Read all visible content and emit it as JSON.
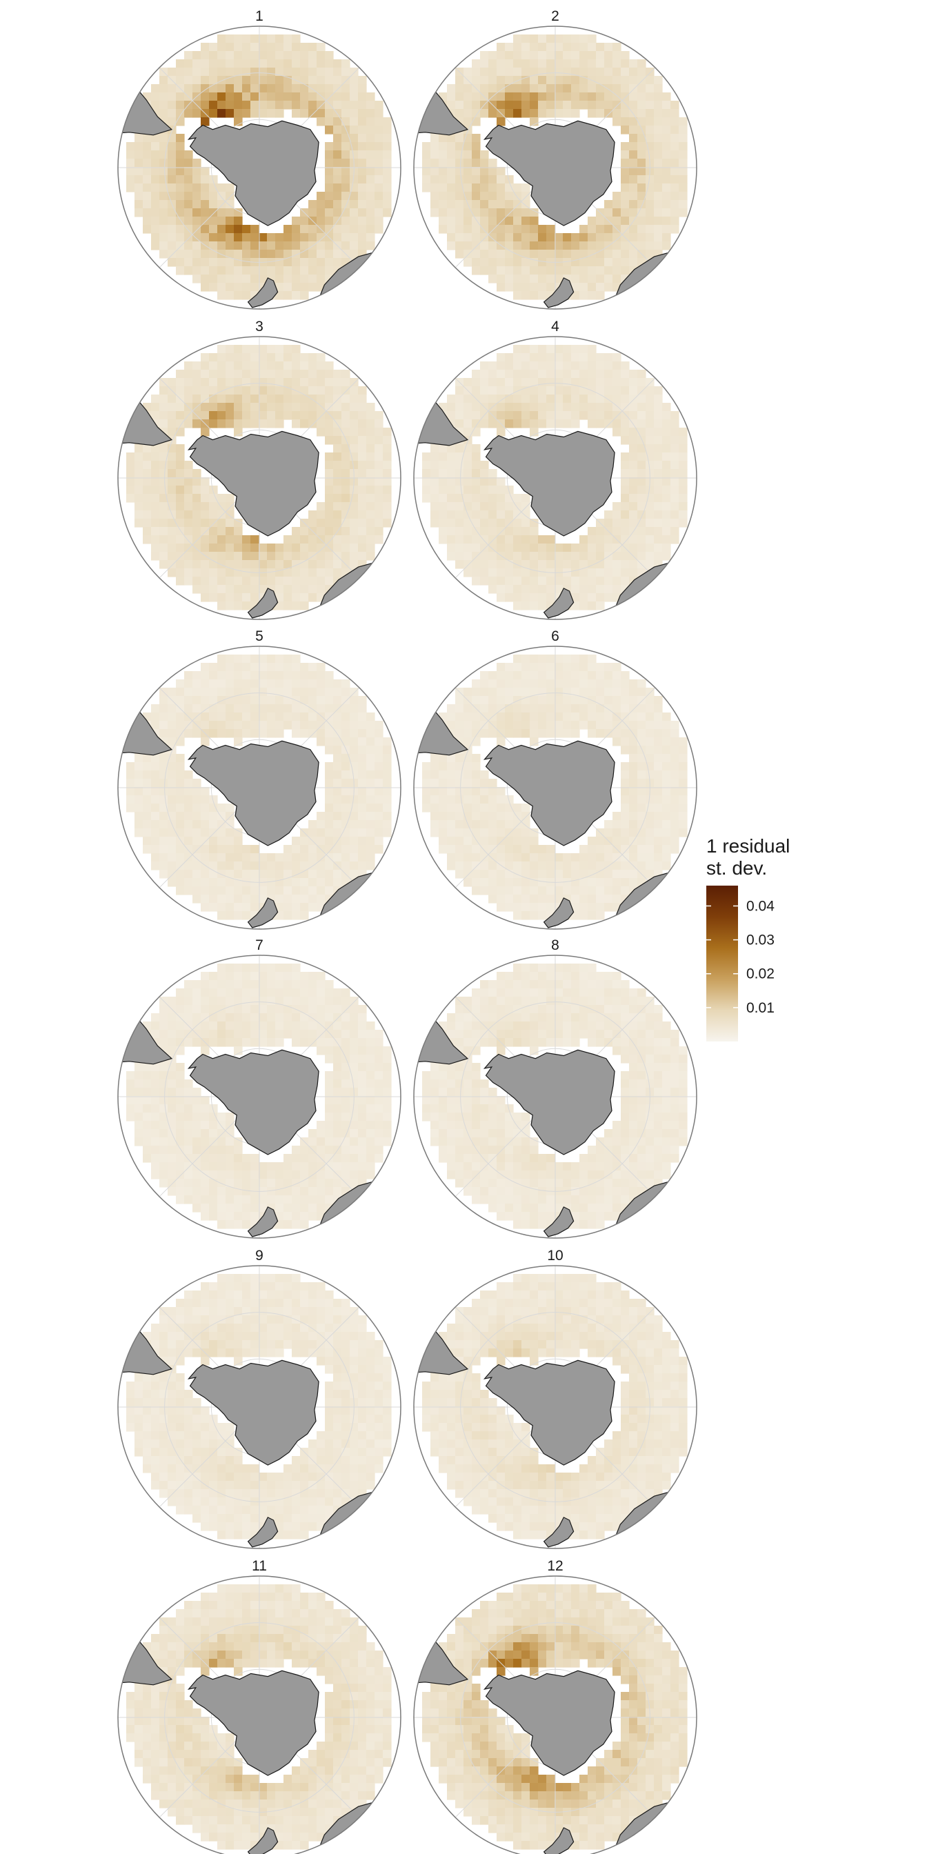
{
  "chart_data": {
    "type": "heatmap",
    "projection": "south-polar-stereographic",
    "panels": [
      {
        "title": "1",
        "intensity": 0.95
      },
      {
        "title": "2",
        "intensity": 0.78
      },
      {
        "title": "3",
        "intensity": 0.62
      },
      {
        "title": "4",
        "intensity": 0.4
      },
      {
        "title": "5",
        "intensity": 0.26
      },
      {
        "title": "6",
        "intensity": 0.24
      },
      {
        "title": "7",
        "intensity": 0.2
      },
      {
        "title": "8",
        "intensity": 0.22
      },
      {
        "title": "9",
        "intensity": 0.24
      },
      {
        "title": "10",
        "intensity": 0.34
      },
      {
        "title": "11",
        "intensity": 0.52
      },
      {
        "title": "12",
        "intensity": 0.8
      }
    ],
    "legend": {
      "title_lines": [
        "1 residual",
        "st. dev."
      ],
      "ticks": [
        "0.04",
        "0.03",
        "0.02",
        "0.01"
      ],
      "tick_values": [
        0.04,
        0.03,
        0.02,
        0.01
      ],
      "range": [
        0.0,
        0.046
      ],
      "colors": [
        "#f7f4ee",
        "#e7d7b6",
        "#c9a05d",
        "#a96f1c",
        "#7f3e0a",
        "#5b1f04"
      ]
    },
    "colors": {
      "land": "#999999",
      "ocean_base": "#f1e8d8",
      "frame": "#7a7a7a",
      "grid": "#d9d9d9"
    }
  }
}
